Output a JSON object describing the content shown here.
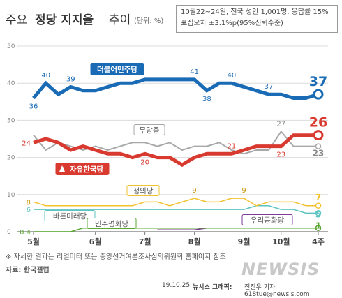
{
  "header": {
    "title_plain": "주요",
    "title_bold": "정당 지지율",
    "title_tail": "추이",
    "unit": "(단위: %)",
    "note_line1": "10월22~24일, 전국 성인 1,001명, 응답률 15%",
    "note_line2": "표집오차 ±3.1%p(95%신뢰수준)"
  },
  "chart_data": {
    "type": "line",
    "x": [
      "5월-1",
      "5월-2",
      "5월-3",
      "5월-4",
      "6월-1",
      "6월-2",
      "6월-3",
      "6월-4",
      "7월-1",
      "7월-2",
      "7월-3",
      "7월-4",
      "8월-1",
      "8월-2",
      "8월-3",
      "8월-4",
      "9월-1",
      "9월-2",
      "9월-3",
      "9월-4",
      "10월-1",
      "10월-2",
      "10월-3",
      "10월-4"
    ],
    "month_labels": [
      {
        "label": "5월",
        "index": 0
      },
      {
        "label": "6월",
        "index": 5
      },
      {
        "label": "7월",
        "index": 9
      },
      {
        "label": "8월",
        "index": 13
      },
      {
        "label": "9월",
        "index": 17
      },
      {
        "label": "10월",
        "index": 20
      },
      {
        "label": "4주",
        "index": 23
      }
    ],
    "y_ticks": [
      0,
      10,
      20,
      30,
      40,
      50
    ],
    "ylim": [
      0,
      50
    ],
    "grid": true,
    "series": [
      {
        "name": "더불어민주당",
        "color": "#1a6bb5",
        "width": 5,
        "values": [
          36,
          40,
          37,
          39,
          38,
          38,
          39,
          40,
          40,
          41,
          41,
          41,
          41,
          41,
          38,
          40,
          40,
          39,
          38,
          37,
          37,
          36,
          36,
          37
        ],
        "labels": [
          {
            "i": 0,
            "t": "36",
            "pos": "below"
          },
          {
            "i": 1,
            "t": "40",
            "pos": "above"
          },
          {
            "i": 3,
            "t": "39",
            "pos": "above"
          },
          {
            "i": 13,
            "t": "41",
            "pos": "above"
          },
          {
            "i": 14,
            "t": "38",
            "pos": "below"
          },
          {
            "i": 16,
            "t": "40",
            "pos": "above"
          },
          {
            "i": 19,
            "t": "37",
            "pos": "above"
          }
        ],
        "end_label": "37"
      },
      {
        "name": "자유한국당",
        "color": "#d93a30",
        "width": 5,
        "values": [
          24,
          25,
          24,
          22,
          23,
          22,
          21,
          21,
          20,
          21,
          20,
          20,
          18,
          20,
          21,
          21,
          21,
          22,
          23,
          23,
          23,
          26,
          26,
          26
        ],
        "labels": [
          {
            "i": 0,
            "t": "24",
            "pos": "left"
          },
          {
            "i": 9,
            "t": "20",
            "pos": "below"
          },
          {
            "i": 16,
            "t": "21",
            "pos": "above"
          },
          {
            "i": 20,
            "t": "23",
            "pos": "below"
          }
        ],
        "end_label": "26"
      },
      {
        "name": "무당층",
        "color": "#a8a8a8",
        "width": 2,
        "values": [
          26,
          22,
          24,
          23,
          22,
          23,
          22,
          23,
          24,
          24,
          23,
          24,
          22,
          23,
          23,
          24,
          22,
          21,
          22,
          22,
          27,
          23,
          23,
          23
        ],
        "labels": [
          {
            "i": 20,
            "t": "27",
            "pos": "above"
          }
        ],
        "end_label": "23"
      },
      {
        "name": "정의당",
        "color": "#f2c12e",
        "width": 1.5,
        "values": [
          8,
          7,
          7,
          7,
          7,
          7,
          7,
          7,
          7,
          8,
          8,
          7,
          8,
          9,
          8,
          8,
          9,
          9,
          7,
          8,
          8,
          8,
          7,
          7
        ],
        "labels": [
          {
            "i": 0,
            "t": "8",
            "pos": "left"
          },
          {
            "i": 13,
            "t": "9",
            "pos": "above"
          },
          {
            "i": 17,
            "t": "9",
            "pos": "above"
          }
        ],
        "end_label": "7"
      },
      {
        "name": "바른미래당",
        "color": "#5bc4c0",
        "width": 1.5,
        "values": [
          6,
          6,
          6,
          6,
          6,
          6,
          6,
          6,
          6,
          6,
          6,
          6,
          6,
          6,
          6,
          6,
          6,
          6,
          7,
          7,
          6,
          6,
          5,
          5
        ],
        "labels": [
          {
            "i": 0,
            "t": "6",
            "pos": "left"
          },
          {
            "i": 17,
            "t": "7",
            "pos": "below"
          }
        ],
        "end_label": "5"
      },
      {
        "name": "민주평화당",
        "color": "#5aa832",
        "width": 1.5,
        "values": [
          0,
          0,
          0,
          0,
          1,
          1,
          1,
          1,
          1,
          1,
          1,
          1,
          1,
          1,
          1,
          1,
          1,
          1,
          1,
          1,
          1,
          1,
          1,
          1
        ],
        "labels": [
          {
            "i": 0,
            "t": "0.4",
            "pos": "left"
          }
        ],
        "end_label": "1"
      },
      {
        "name": "우리공화당",
        "color": "#7e3b98",
        "width": 1.5,
        "values": [
          null,
          null,
          null,
          null,
          null,
          null,
          null,
          null,
          null,
          null,
          0.5,
          0.5,
          0.5,
          0.5,
          1,
          1,
          1,
          1,
          1,
          1,
          1,
          1,
          1,
          1
        ],
        "labels": [],
        "end_label": ""
      }
    ],
    "series_tags": [
      {
        "name": "더불어민주당",
        "bg": "#1a6bb5",
        "fg": "#ffffff"
      },
      {
        "name": "자유한국당",
        "bg": "#d93a30",
        "fg": "#ffffff"
      },
      {
        "name": "무당층",
        "bg": "#ffffff",
        "fg": "#555555"
      },
      {
        "name": "정의당",
        "bg": "#ffffff",
        "fg": "#555555"
      },
      {
        "name": "바른미래당",
        "bg": "#ffffff",
        "fg": "#555555"
      },
      {
        "name": "민주평화당",
        "bg": "#ffffff",
        "fg": "#555555"
      },
      {
        "name": "우리공화당",
        "bg": "#ffffff",
        "fg": "#555555"
      }
    ]
  },
  "footer": {
    "disclaimer": "※ 자세한 결과는 리얼미터 또는 중앙선거여론조사심의위원회 홈페이지 참조",
    "source": "자료: 한국갤럽",
    "credit_date": "19.10.25",
    "credit_agency": "뉴시스 그래픽:",
    "credit_author": "전진우 기자 618tue@newsis.com",
    "watermark": "NEWSIS"
  }
}
